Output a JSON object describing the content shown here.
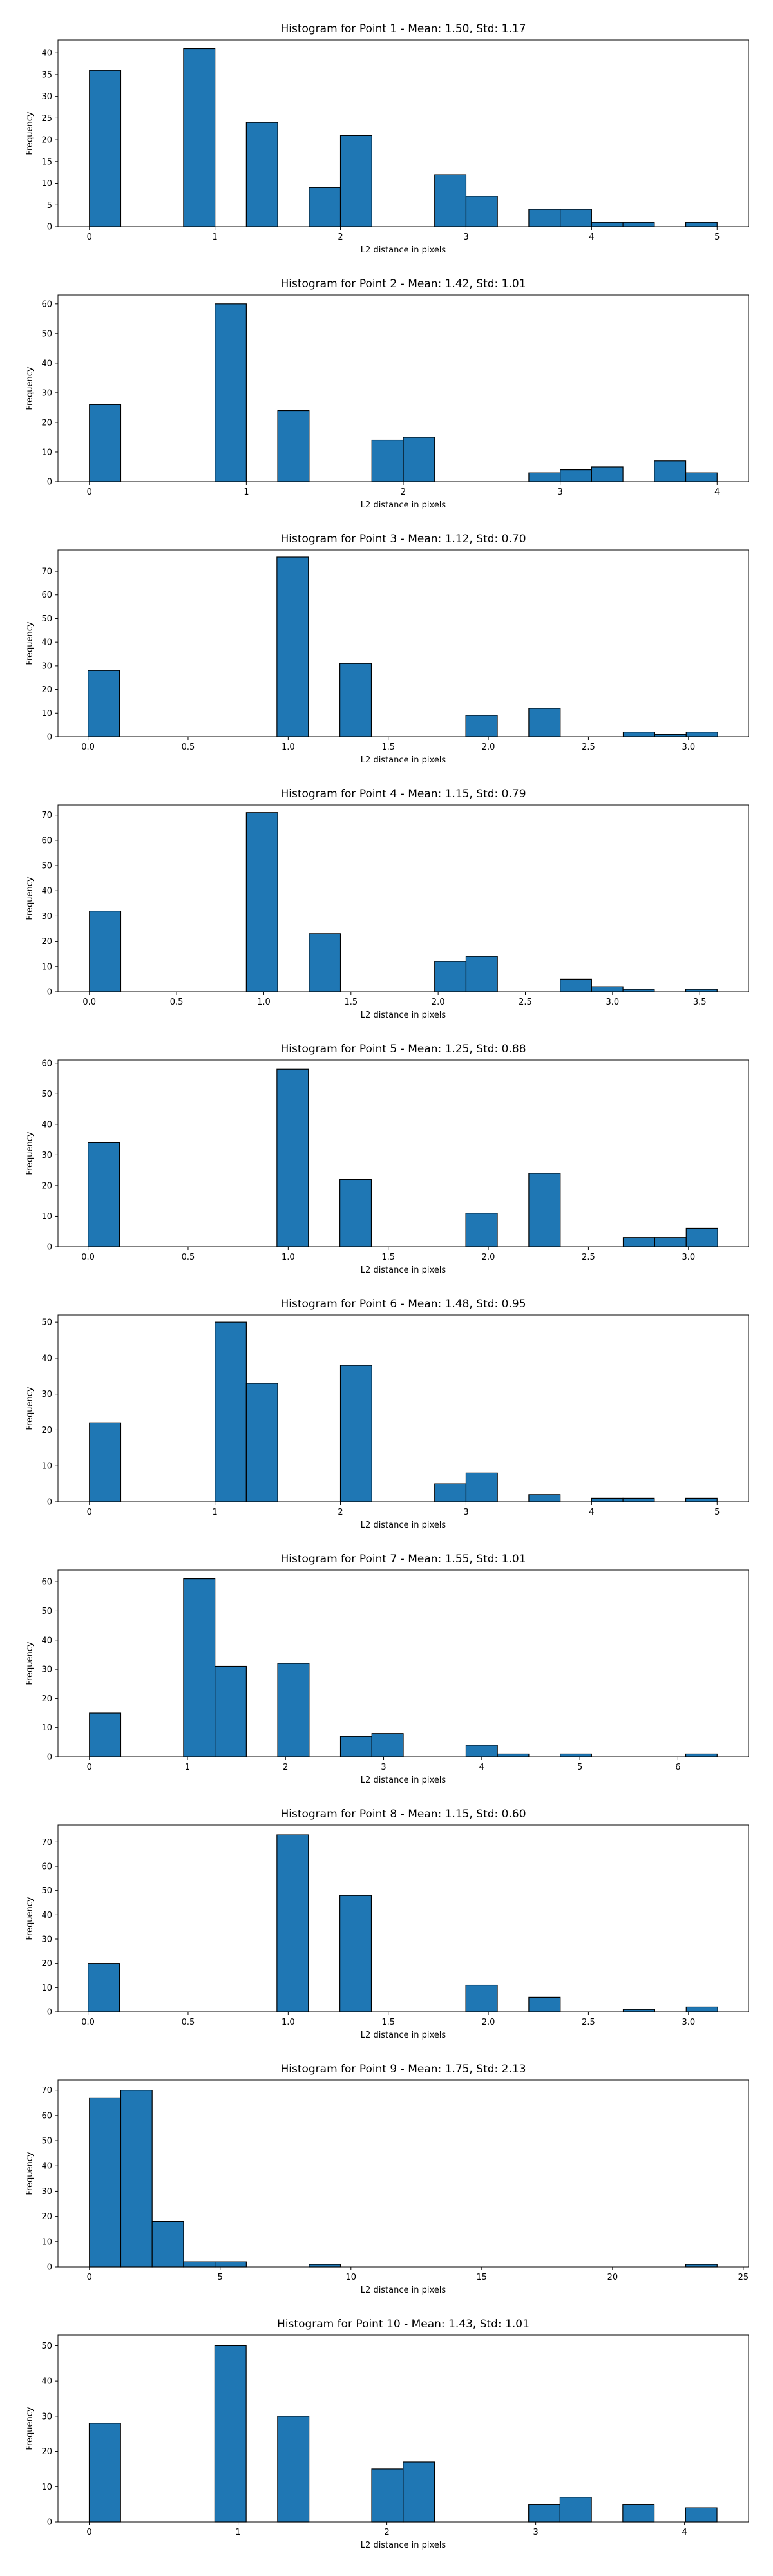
{
  "chart_data": [
    {
      "type": "bar",
      "title": "Histogram for Point 1 - Mean: 1.50, Std: 1.17",
      "xlabel": "L2 distance in pixels",
      "ylabel": "Frequency",
      "xlim": [
        -0.25,
        5.25
      ],
      "ylim": [
        0,
        43
      ],
      "xticks": [
        0,
        1,
        2,
        3,
        4,
        5
      ],
      "xtick_labels": [
        "0",
        "1",
        "2",
        "3",
        "4",
        "5"
      ],
      "yticks": [
        0,
        5,
        10,
        15,
        20,
        25,
        30,
        35,
        40
      ],
      "yticks_labels": [
        "0",
        "5",
        "10",
        "15",
        "20",
        "25",
        "30",
        "35",
        "40"
      ],
      "bin_edges": [
        0,
        0.25,
        0.5,
        0.75,
        1.0,
        1.25,
        1.5,
        1.75,
        2.0,
        2.25,
        2.5,
        2.75,
        3.0,
        3.25,
        3.5,
        3.75,
        4.0,
        4.25,
        4.5,
        4.75,
        5.0
      ],
      "values": [
        36,
        0,
        0,
        41,
        0,
        24,
        0,
        9,
        21,
        0,
        0,
        12,
        7,
        0,
        4,
        4,
        1,
        1,
        0,
        1
      ],
      "grid": false
    },
    {
      "type": "bar",
      "title": "Histogram for Point 2 - Mean: 1.42, Std: 1.01",
      "xlabel": "L2 distance in pixels",
      "ylabel": "Frequency",
      "xlim": [
        -0.2,
        4.2
      ],
      "ylim": [
        0,
        63
      ],
      "xticks": [
        0,
        1,
        2,
        3,
        4
      ],
      "xtick_labels": [
        "0",
        "1",
        "2",
        "3",
        "4"
      ],
      "yticks": [
        0,
        10,
        20,
        30,
        40,
        50,
        60
      ],
      "yticks_labels": [
        "0",
        "10",
        "20",
        "30",
        "40",
        "50",
        "60"
      ],
      "bin_edges": [
        0,
        0.2,
        0.4,
        0.6,
        0.8,
        1.0,
        1.2,
        1.4,
        1.6,
        1.8,
        2.0,
        2.2,
        2.4,
        2.6,
        2.8,
        3.0,
        3.2,
        3.4,
        3.6,
        3.8,
        4.0
      ],
      "values": [
        26,
        0,
        0,
        0,
        60,
        0,
        24,
        0,
        0,
        14,
        15,
        0,
        0,
        0,
        3,
        4,
        5,
        0,
        7,
        3
      ],
      "grid": false
    },
    {
      "type": "bar",
      "title": "Histogram for Point 3 - Mean: 1.12, Std: 0.70",
      "xlabel": "L2 distance in pixels",
      "ylabel": "Frequency",
      "xlim": [
        -0.15,
        3.3
      ],
      "ylim": [
        0,
        79
      ],
      "xticks": [
        0.0,
        0.5,
        1.0,
        1.5,
        2.0,
        2.5,
        3.0
      ],
      "xtick_labels": [
        "0.0",
        "0.5",
        "1.0",
        "1.5",
        "2.0",
        "2.5",
        "3.0"
      ],
      "yticks": [
        0,
        10,
        20,
        30,
        40,
        50,
        60,
        70
      ],
      "yticks_labels": [
        "0",
        "10",
        "20",
        "30",
        "40",
        "50",
        "60",
        "70"
      ],
      "bin_edges": [
        0.0,
        0.1573,
        0.3146,
        0.4719,
        0.6292,
        0.7865,
        0.9438,
        1.1011,
        1.2584,
        1.4157,
        1.573,
        1.7303,
        1.8876,
        2.0449,
        2.2022,
        2.3595,
        2.5168,
        2.6741,
        2.8314,
        2.9887,
        3.146
      ],
      "values": [
        28,
        0,
        0,
        0,
        0,
        0,
        76,
        0,
        31,
        0,
        0,
        0,
        9,
        0,
        12,
        0,
        0,
        2,
        1,
        2
      ],
      "grid": false
    },
    {
      "type": "bar",
      "title": "Histogram for Point 4 - Mean: 1.15, Std: 0.79",
      "xlabel": "L2 distance in pixels",
      "ylabel": "Frequency",
      "xlim": [
        -0.18,
        3.78
      ],
      "ylim": [
        0,
        74
      ],
      "xticks": [
        0.0,
        0.5,
        1.0,
        1.5,
        2.0,
        2.5,
        3.0,
        3.5
      ],
      "xtick_labels": [
        "0.0",
        "0.5",
        "1.0",
        "1.5",
        "2.0",
        "2.5",
        "3.0",
        "3.5"
      ],
      "yticks": [
        0,
        10,
        20,
        30,
        40,
        50,
        60,
        70
      ],
      "yticks_labels": [
        "0",
        "10",
        "20",
        "30",
        "40",
        "50",
        "60",
        "70"
      ],
      "bin_edges": [
        0.0,
        0.18,
        0.36,
        0.54,
        0.72,
        0.9,
        1.08,
        1.26,
        1.44,
        1.62,
        1.8,
        1.98,
        2.16,
        2.34,
        2.52,
        2.7,
        2.88,
        3.06,
        3.24,
        3.42,
        3.6
      ],
      "values": [
        32,
        0,
        0,
        0,
        0,
        71,
        0,
        23,
        0,
        0,
        0,
        12,
        14,
        0,
        0,
        5,
        2,
        1,
        0,
        1
      ],
      "grid": false
    },
    {
      "type": "bar",
      "title": "Histogram for Point 5 - Mean: 1.25, Std: 0.88",
      "xlabel": "L2 distance in pixels",
      "ylabel": "Frequency",
      "xlim": [
        -0.15,
        3.3
      ],
      "ylim": [
        0,
        61
      ],
      "xticks": [
        0.0,
        0.5,
        1.0,
        1.5,
        2.0,
        2.5,
        3.0
      ],
      "xtick_labels": [
        "0.0",
        "0.5",
        "1.0",
        "1.5",
        "2.0",
        "2.5",
        "3.0"
      ],
      "yticks": [
        0,
        10,
        20,
        30,
        40,
        50,
        60
      ],
      "yticks_labels": [
        "0",
        "10",
        "20",
        "30",
        "40",
        "50",
        "60"
      ],
      "bin_edges": [
        0.0,
        0.1573,
        0.3146,
        0.4719,
        0.6292,
        0.7865,
        0.9438,
        1.1011,
        1.2584,
        1.4157,
        1.573,
        1.7303,
        1.8876,
        2.0449,
        2.2022,
        2.3595,
        2.5168,
        2.6741,
        2.8314,
        2.9887,
        3.146
      ],
      "values": [
        34,
        0,
        0,
        0,
        0,
        0,
        58,
        0,
        22,
        0,
        0,
        0,
        11,
        0,
        24,
        0,
        0,
        3,
        3,
        6
      ],
      "grid": false
    },
    {
      "type": "bar",
      "title": "Histogram for Point 6 - Mean: 1.48, Std: 0.95",
      "xlabel": "L2 distance in pixels",
      "ylabel": "Frequency",
      "xlim": [
        -0.25,
        5.25
      ],
      "ylim": [
        0,
        52
      ],
      "xticks": [
        0,
        1,
        2,
        3,
        4,
        5
      ],
      "xtick_labels": [
        "0",
        "1",
        "2",
        "3",
        "4",
        "5"
      ],
      "yticks": [
        0,
        10,
        20,
        30,
        40,
        50
      ],
      "yticks_labels": [
        "0",
        "10",
        "20",
        "30",
        "40",
        "50"
      ],
      "bin_edges": [
        0,
        0.25,
        0.5,
        0.75,
        1.0,
        1.25,
        1.5,
        1.75,
        2.0,
        2.25,
        2.5,
        2.75,
        3.0,
        3.25,
        3.5,
        3.75,
        4.0,
        4.25,
        4.5,
        4.75,
        5.0
      ],
      "values": [
        22,
        0,
        0,
        0,
        50,
        33,
        0,
        0,
        38,
        0,
        0,
        5,
        8,
        0,
        2,
        0,
        1,
        1,
        0,
        1
      ],
      "grid": false
    },
    {
      "type": "bar",
      "title": "Histogram for Point 7 - Mean: 1.55, Std: 1.01",
      "xlabel": "L2 distance in pixels",
      "ylabel": "Frequency",
      "xlim": [
        -0.32,
        6.72
      ],
      "ylim": [
        0,
        64
      ],
      "xticks": [
        0,
        1,
        2,
        3,
        4,
        5,
        6
      ],
      "xtick_labels": [
        "0",
        "1",
        "2",
        "3",
        "4",
        "5",
        "6"
      ],
      "yticks": [
        0,
        10,
        20,
        30,
        40,
        50,
        60
      ],
      "yticks_labels": [
        "0",
        "10",
        "20",
        "30",
        "40",
        "50",
        "60"
      ],
      "bin_edges": [
        0.0,
        0.32,
        0.64,
        0.96,
        1.28,
        1.6,
        1.92,
        2.24,
        2.56,
        2.88,
        3.2,
        3.52,
        3.84,
        4.16,
        4.48,
        4.8,
        5.12,
        5.44,
        5.76,
        6.08,
        6.4
      ],
      "values": [
        15,
        0,
        0,
        61,
        31,
        0,
        32,
        0,
        7,
        8,
        0,
        0,
        4,
        1,
        0,
        1,
        0,
        0,
        0,
        1
      ],
      "grid": false
    },
    {
      "type": "bar",
      "title": "Histogram for Point 8 - Mean: 1.15, Std: 0.60",
      "xlabel": "L2 distance in pixels",
      "ylabel": "Frequency",
      "xlim": [
        -0.15,
        3.3
      ],
      "ylim": [
        0,
        77
      ],
      "xticks": [
        0.0,
        0.5,
        1.0,
        1.5,
        2.0,
        2.5,
        3.0
      ],
      "xtick_labels": [
        "0.0",
        "0.5",
        "1.0",
        "1.5",
        "2.0",
        "2.5",
        "3.0"
      ],
      "yticks": [
        0,
        10,
        20,
        30,
        40,
        50,
        60,
        70
      ],
      "yticks_labels": [
        "0",
        "10",
        "20",
        "30",
        "40",
        "50",
        "60",
        "70"
      ],
      "bin_edges": [
        0.0,
        0.1573,
        0.3146,
        0.4719,
        0.6292,
        0.7865,
        0.9438,
        1.1011,
        1.2584,
        1.4157,
        1.573,
        1.7303,
        1.8876,
        2.0449,
        2.2022,
        2.3595,
        2.5168,
        2.6741,
        2.8314,
        2.9887,
        3.146
      ],
      "values": [
        20,
        0,
        0,
        0,
        0,
        0,
        73,
        0,
        48,
        0,
        0,
        0,
        11,
        0,
        6,
        0,
        0,
        1,
        0,
        2
      ],
      "grid": false
    },
    {
      "type": "bar",
      "title": "Histogram for Point 9 - Mean: 1.75, Std: 2.13",
      "xlabel": "L2 distance in pixels",
      "ylabel": "Frequency",
      "xlim": [
        -1.2,
        25.2
      ],
      "ylim": [
        0,
        74
      ],
      "xticks": [
        0,
        5,
        10,
        15,
        20,
        25
      ],
      "xtick_labels": [
        "0",
        "5",
        "10",
        "15",
        "20",
        "25"
      ],
      "yticks": [
        0,
        10,
        20,
        30,
        40,
        50,
        60,
        70
      ],
      "yticks_labels": [
        "0",
        "10",
        "20",
        "30",
        "40",
        "50",
        "60",
        "70"
      ],
      "bin_edges": [
        0.0,
        1.2,
        2.4,
        3.6,
        4.8,
        6.0,
        7.2,
        8.4,
        9.6,
        10.8,
        12.0,
        13.2,
        14.4,
        15.6,
        16.8,
        18.0,
        19.2,
        20.4,
        21.6,
        22.8,
        24.0
      ],
      "values": [
        67,
        70,
        18,
        2,
        2,
        0,
        0,
        1,
        0,
        0,
        0,
        0,
        0,
        0,
        0,
        0,
        0,
        0,
        0,
        1
      ],
      "grid": false
    },
    {
      "type": "bar",
      "title": "Histogram for Point 10 - Mean: 1.43, Std: 1.01",
      "xlabel": "L2 distance in pixels",
      "ylabel": "Frequency",
      "xlim": [
        -0.21,
        4.43
      ],
      "ylim": [
        0,
        53
      ],
      "xticks": [
        0,
        1,
        2,
        3,
        4
      ],
      "xtick_labels": [
        "0",
        "1",
        "2",
        "3",
        "4"
      ],
      "yticks": [
        0,
        10,
        20,
        30,
        40,
        50
      ],
      "yticks_labels": [
        "0",
        "10",
        "20",
        "30",
        "40",
        "50"
      ],
      "bin_edges": [
        0.0,
        0.2109,
        0.4218,
        0.6327,
        0.8436,
        1.0545,
        1.2654,
        1.4763,
        1.6872,
        1.8981,
        2.109,
        2.3199,
        2.5308,
        2.7417,
        2.9526,
        3.1635,
        3.3744,
        3.5853,
        3.7962,
        4.0071,
        4.218
      ],
      "values": [
        28,
        0,
        0,
        0,
        50,
        0,
        30,
        0,
        0,
        15,
        17,
        0,
        0,
        0,
        5,
        7,
        0,
        5,
        0,
        4
      ],
      "grid": false
    }
  ],
  "style": {
    "bar_fill": "#1f77b4",
    "bar_edge": "#000000",
    "axes_color": "#000000",
    "background": "#ffffff"
  }
}
